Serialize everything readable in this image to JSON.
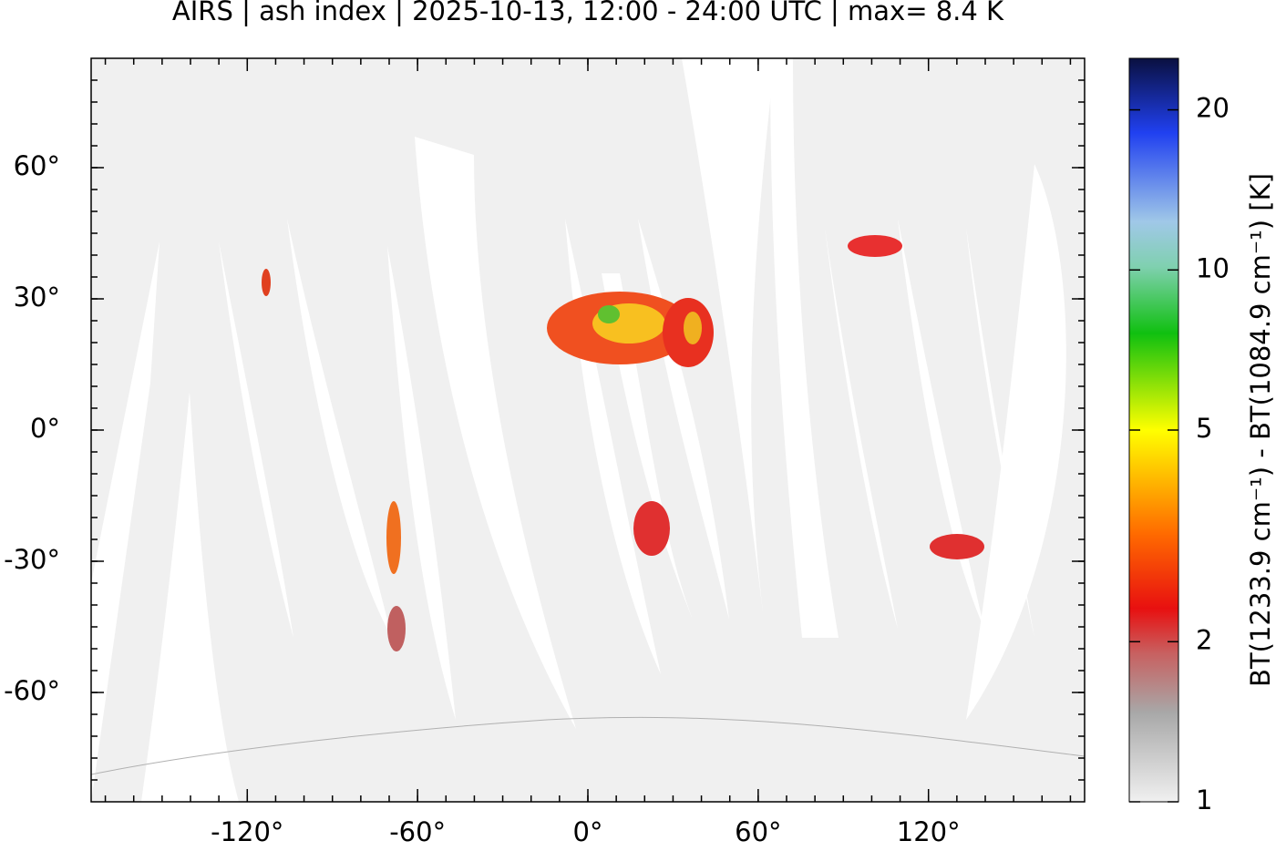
{
  "chart_data": {
    "type": "map",
    "title": "AIRS | ash index | 2025-10-13, 12:00 - 24:00 UTC | max= 8.4 K",
    "xlim": [
      -175,
      175
    ],
    "ylim": [
      -85,
      85
    ],
    "xticks": [
      {
        "value": -120,
        "label": "-120°"
      },
      {
        "value": -60,
        "label": "-60°"
      },
      {
        "value": 0,
        "label": "0°"
      },
      {
        "value": 60,
        "label": "60°"
      },
      {
        "value": 120,
        "label": "120°"
      }
    ],
    "yticks": [
      {
        "value": 60,
        "label": "60°"
      },
      {
        "value": 30,
        "label": "30°"
      },
      {
        "value": 0,
        "label": "0°"
      },
      {
        "value": -30,
        "label": "-30°"
      },
      {
        "value": -60,
        "label": "-60°"
      }
    ],
    "colorbar": {
      "label": "BT(1233.9 cm⁻¹) - BT(1084.9 cm⁻¹) [K]",
      "lim": [
        1,
        25
      ],
      "log": true,
      "ticks": [
        1,
        2,
        5,
        10,
        20
      ]
    }
  }
}
